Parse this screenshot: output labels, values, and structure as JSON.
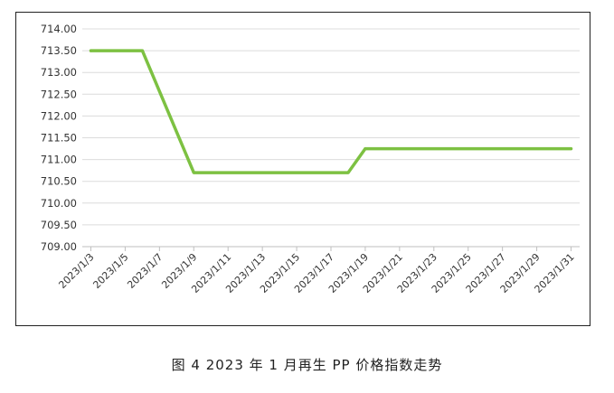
{
  "caption": "图 4  2023 年 1 月再生 PP 价格指数走势",
  "chart_data": {
    "type": "line",
    "title": "",
    "xlabel": "",
    "ylabel": "",
    "ylim": [
      709.0,
      714.0
    ],
    "grid": "horizontal",
    "line_color": "#7dc142",
    "y_ticks": [
      "709.00",
      "709.50",
      "710.00",
      "710.50",
      "711.00",
      "711.50",
      "712.00",
      "712.50",
      "713.00",
      "713.50",
      "714.00"
    ],
    "x_ticks": [
      "2023/1/3",
      "2023/1/5",
      "2023/1/7",
      "2023/1/9",
      "2023/1/11",
      "2023/1/13",
      "2023/1/15",
      "2023/1/17",
      "2023/1/19",
      "2023/1/21",
      "2023/1/23",
      "2023/1/25",
      "2023/1/27",
      "2023/1/29",
      "2023/1/31"
    ],
    "series": [
      {
        "x": [
          "2023/1/3",
          "2023/1/6",
          "2023/1/9",
          "2023/1/18",
          "2023/1/19",
          "2023/1/31"
        ],
        "values": [
          713.5,
          713.5,
          710.7,
          710.7,
          711.25,
          711.25
        ]
      }
    ]
  }
}
